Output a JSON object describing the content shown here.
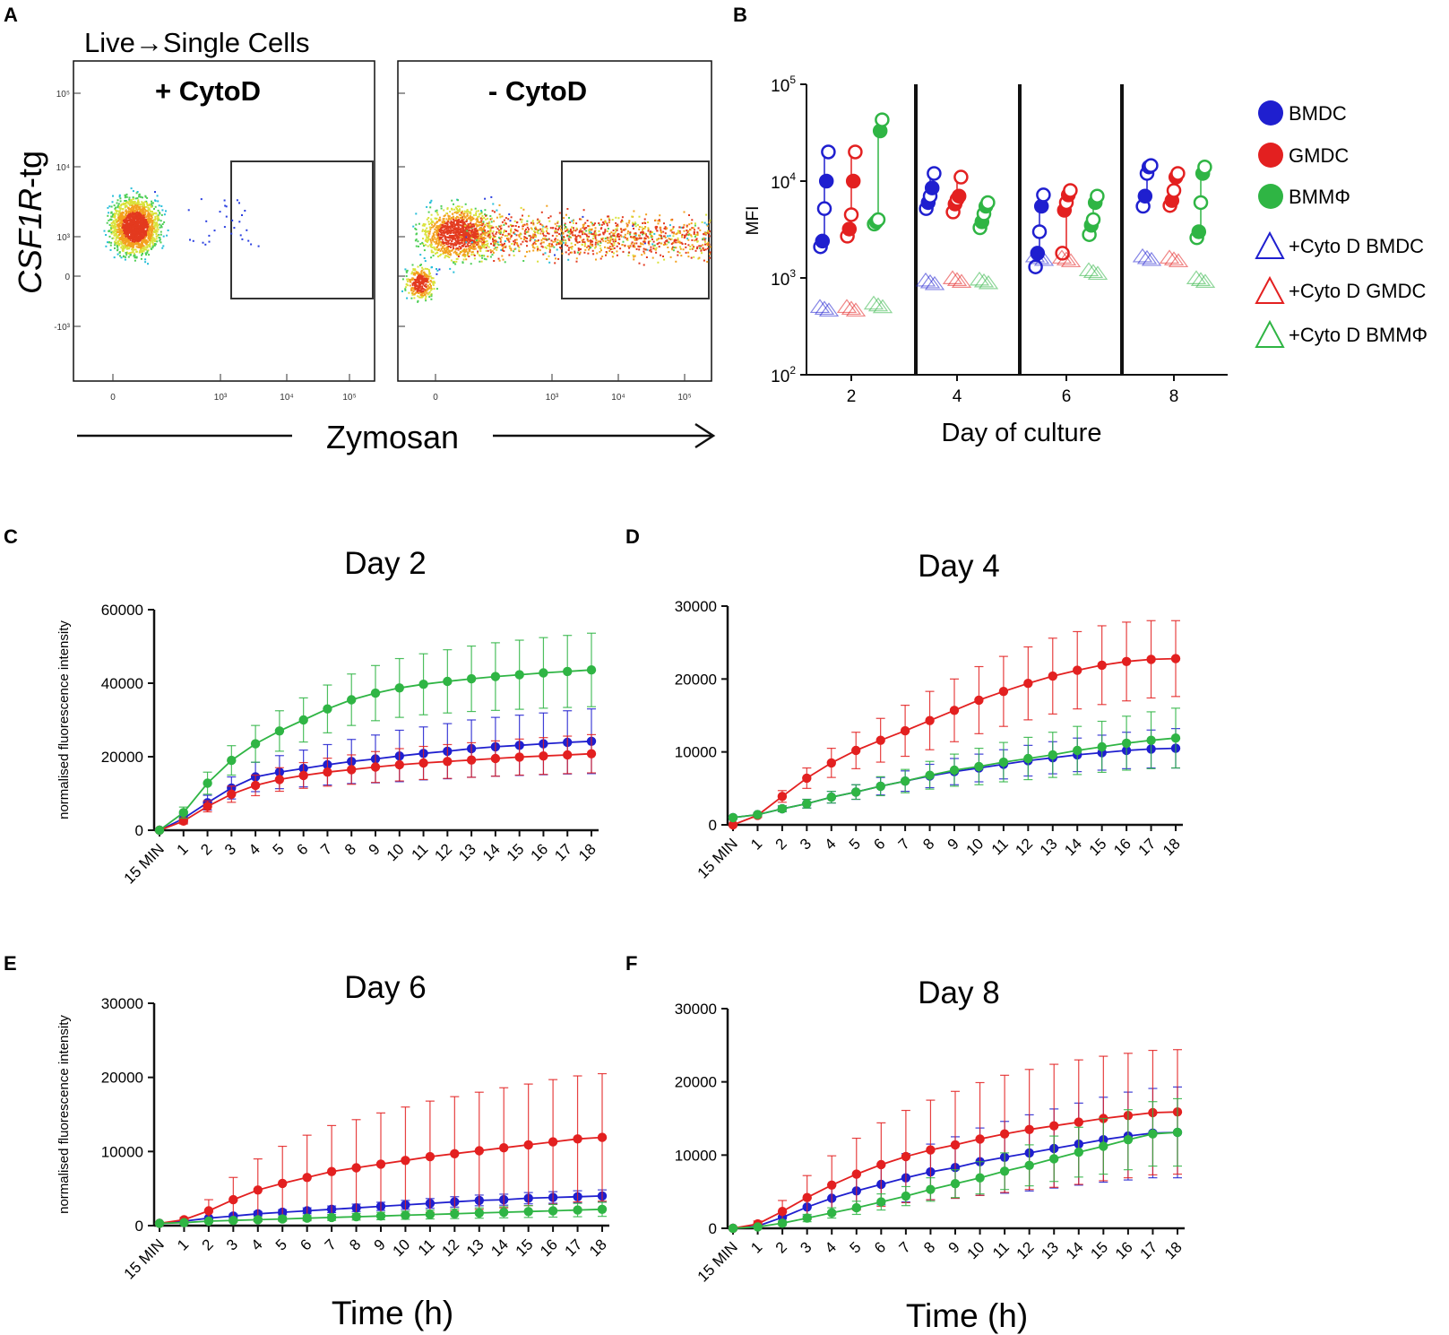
{
  "panel_letters": {
    "a": "A",
    "b": "B",
    "c": "C",
    "d": "D",
    "e": "E",
    "f": "F"
  },
  "colors": {
    "BMDC": "#1f1fcf",
    "GMDC": "#e32020",
    "BMMPhi": "#2fb544",
    "axis": "#111111",
    "gate": "#333333"
  },
  "chart_data": [
    {
      "id": "A",
      "type": "scatter",
      "title": "Live→Single Cells",
      "subplots": [
        {
          "label": "+ CytoD",
          "gated_population": "none"
        },
        {
          "label": "- CytoD",
          "gated_population": "large"
        }
      ],
      "xlabel": "Zymosan",
      "ylabel_italic": "CSF1R",
      "ylabel_suffix": "-tg",
      "xticks": [
        "0",
        "10³",
        "10⁴",
        "10⁵"
      ],
      "yticks": [
        "10⁵",
        "10⁴",
        "10³",
        "0",
        "-10³"
      ],
      "axis_scale": "biexponential"
    },
    {
      "id": "B",
      "type": "scatter",
      "xlabel": "Day of culture",
      "ylabel": "MFI",
      "yscale": "log",
      "ylim": [
        100,
        100000
      ],
      "ytick_labels": [
        {
          "base": "10",
          "exp": "5"
        },
        {
          "base": "10",
          "exp": "4"
        },
        {
          "base": "10",
          "exp": "3"
        },
        {
          "base": "10",
          "exp": "2"
        }
      ],
      "categories": [
        "2",
        "4",
        "6",
        "8"
      ],
      "series": [
        {
          "name": "BMDC",
          "values": [
            [
              2100,
              2400,
              5200,
              10000,
              20000
            ],
            [
              5200,
              6000,
              7000,
              8500,
              12000
            ],
            [
              1300,
              1800,
              3000,
              5500,
              7200
            ],
            [
              5500,
              7000,
              12000,
              14000,
              14500
            ]
          ]
        },
        {
          "name": "GMDC",
          "values": [
            [
              2700,
              3200,
              4500,
              10000,
              20000
            ],
            [
              4800,
              5800,
              6500,
              7000,
              11000
            ],
            [
              1800,
              5000,
              6000,
              7200,
              8000
            ],
            [
              5600,
              6300,
              8000,
              11000,
              12000
            ]
          ]
        },
        {
          "name": "BMMΦ",
          "values": [
            [
              3600,
              3800,
              4000,
              33000,
              43000
            ],
            [
              3300,
              3800,
              4600,
              5500,
              6000
            ],
            [
              2800,
              3500,
              4000,
              6000,
              7000
            ],
            [
              2600,
              3000,
              6000,
              12000,
              14000
            ]
          ]
        },
        {
          "name": "+Cyto D BMDC",
          "values": [
            480,
            900,
            1600,
            1600
          ]
        },
        {
          "name": "+Cyto D GMDC",
          "values": [
            480,
            950,
            1550,
            1550
          ]
        },
        {
          "name": "+Cyto D BMMΦ",
          "values": [
            520,
            920,
            1150,
            950
          ]
        }
      ]
    },
    {
      "id": "C",
      "type": "line",
      "title": "Day 2",
      "ylabel": "normalised fluorescence intensity",
      "xlabel": "",
      "ylim": [
        0,
        60000
      ],
      "yticks": [
        "0",
        "20000",
        "40000",
        "60000"
      ],
      "categories": [
        "15 MIN",
        "1",
        "2",
        "3",
        "4",
        "5",
        "6",
        "7",
        "8",
        "9",
        "10",
        "11",
        "12",
        "13",
        "14",
        "15",
        "16",
        "17",
        "18"
      ],
      "series": [
        {
          "name": "BMDC",
          "values": [
            0,
            3200,
            7500,
            11500,
            14500,
            15800,
            16800,
            17800,
            18700,
            19400,
            20200,
            20900,
            21500,
            22200,
            22700,
            23100,
            23500,
            23900,
            24200
          ],
          "errors": [
            0,
            1200,
            2000,
            3000,
            4000,
            4500,
            5000,
            5500,
            6000,
            6500,
            7000,
            7200,
            7500,
            7800,
            8000,
            8200,
            8400,
            8600,
            8800
          ]
        },
        {
          "name": "GMDC",
          "values": [
            0,
            2500,
            6500,
            9800,
            12200,
            13800,
            14900,
            15800,
            16500,
            17200,
            17800,
            18300,
            18700,
            19100,
            19500,
            19900,
            20200,
            20500,
            20800
          ],
          "errors": [
            0,
            800,
            1500,
            2200,
            2800,
            3200,
            3500,
            3800,
            4000,
            4200,
            4400,
            4500,
            4600,
            4700,
            4800,
            4900,
            5000,
            5100,
            5200
          ]
        },
        {
          "name": "BMMΦ",
          "values": [
            0,
            4800,
            12800,
            19000,
            23500,
            27000,
            30000,
            33000,
            35500,
            37300,
            38700,
            39700,
            40500,
            41200,
            41800,
            42300,
            42800,
            43200,
            43600
          ],
          "errors": [
            0,
            1500,
            3000,
            4000,
            5000,
            5500,
            6000,
            6500,
            7000,
            7500,
            8000,
            8300,
            8600,
            8900,
            9200,
            9400,
            9600,
            9800,
            10000
          ]
        }
      ]
    },
    {
      "id": "D",
      "type": "line",
      "title": "Day 4",
      "ylabel": "",
      "xlabel": "",
      "ylim": [
        0,
        30000
      ],
      "yticks": [
        "0",
        "10000",
        "20000",
        "30000"
      ],
      "categories": [
        "15 MIN",
        "1",
        "2",
        "3",
        "4",
        "5",
        "6",
        "7",
        "8",
        "9",
        "10",
        "11",
        "12",
        "13",
        "14",
        "15",
        "16",
        "17",
        "18"
      ],
      "series": [
        {
          "name": "BMDC",
          "values": [
            1000,
            1400,
            2200,
            2900,
            3800,
            4500,
            5300,
            6000,
            6700,
            7300,
            7800,
            8300,
            8800,
            9200,
            9600,
            9900,
            10200,
            10400,
            10500
          ],
          "errors": [
            0,
            200,
            400,
            600,
            800,
            1000,
            1200,
            1400,
            1600,
            1800,
            1900,
            2000,
            2100,
            2200,
            2300,
            2400,
            2500,
            2600,
            2700
          ]
        },
        {
          "name": "GMDC",
          "values": [
            0,
            1300,
            3900,
            6400,
            8500,
            10200,
            11600,
            12900,
            14300,
            15700,
            17100,
            18300,
            19400,
            20400,
            21200,
            21900,
            22400,
            22700,
            22800
          ],
          "errors": [
            0,
            300,
            800,
            1400,
            2000,
            2500,
            3000,
            3500,
            4000,
            4300,
            4600,
            4800,
            5000,
            5200,
            5300,
            5400,
            5400,
            5300,
            5200
          ]
        },
        {
          "name": "BMMΦ",
          "values": [
            1000,
            1400,
            2200,
            2900,
            3800,
            4500,
            5300,
            6000,
            6800,
            7500,
            8000,
            8600,
            9100,
            9600,
            10200,
            10700,
            11200,
            11600,
            11900
          ],
          "errors": [
            0,
            200,
            400,
            600,
            800,
            1000,
            1300,
            1600,
            1900,
            2200,
            2500,
            2700,
            2900,
            3100,
            3300,
            3500,
            3700,
            3900,
            4100
          ]
        }
      ]
    },
    {
      "id": "E",
      "type": "line",
      "title": "Day 6",
      "ylabel": "normalised fluorescence intensity",
      "xlabel": "Time (h)",
      "ylim": [
        0,
        30000
      ],
      "yticks": [
        "0",
        "10000",
        "20000",
        "30000"
      ],
      "categories": [
        "15 MIN",
        "1",
        "2",
        "3",
        "4",
        "5",
        "6",
        "7",
        "8",
        "9",
        "10",
        "11",
        "12",
        "13",
        "14",
        "15",
        "16",
        "17",
        "18"
      ],
      "series": [
        {
          "name": "BMDC",
          "values": [
            300,
            600,
            1000,
            1300,
            1600,
            1800,
            2000,
            2200,
            2400,
            2600,
            2800,
            3000,
            3200,
            3400,
            3500,
            3700,
            3800,
            3900,
            4000
          ],
          "errors": [
            0,
            100,
            200,
            250,
            300,
            350,
            400,
            450,
            500,
            550,
            600,
            650,
            700,
            720,
            740,
            760,
            780,
            800,
            820
          ]
        },
        {
          "name": "GMDC",
          "values": [
            300,
            800,
            2000,
            3500,
            4800,
            5700,
            6500,
            7300,
            7800,
            8300,
            8800,
            9300,
            9700,
            10100,
            10500,
            10900,
            11300,
            11700,
            11900
          ],
          "errors": [
            0,
            300,
            1500,
            3000,
            4200,
            5000,
            5700,
            6200,
            6500,
            6900,
            7200,
            7500,
            7700,
            7900,
            8100,
            8200,
            8400,
            8500,
            8600
          ]
        },
        {
          "name": "BMMΦ",
          "values": [
            300,
            400,
            600,
            700,
            800,
            900,
            1000,
            1100,
            1200,
            1300,
            1400,
            1500,
            1600,
            1700,
            1800,
            1900,
            2000,
            2100,
            2200
          ],
          "errors": [
            0,
            100,
            150,
            200,
            250,
            300,
            350,
            400,
            450,
            500,
            550,
            600,
            650,
            700,
            750,
            800,
            850,
            900,
            950
          ]
        }
      ]
    },
    {
      "id": "F",
      "type": "line",
      "title": "Day 8",
      "ylabel": "",
      "xlabel": "Time (h)",
      "ylim": [
        0,
        30000
      ],
      "yticks": [
        "0",
        "10000",
        "20000",
        "30000"
      ],
      "categories": [
        "15 MIN",
        "1",
        "2",
        "3",
        "4",
        "5",
        "6",
        "7",
        "8",
        "9",
        "10",
        "11",
        "12",
        "13",
        "14",
        "15",
        "16",
        "17",
        "18"
      ],
      "series": [
        {
          "name": "BMDC",
          "values": [
            0,
            300,
            1500,
            2900,
            4100,
            5100,
            6000,
            6900,
            7700,
            8300,
            9100,
            9700,
            10300,
            10900,
            11500,
            12100,
            12600,
            13000,
            13100
          ],
          "errors": [
            0,
            200,
            700,
            1200,
            1800,
            2300,
            2800,
            3300,
            3800,
            4200,
            4600,
            4900,
            5200,
            5400,
            5600,
            5800,
            6000,
            6100,
            6200
          ]
        },
        {
          "name": "GMDC",
          "values": [
            0,
            600,
            2300,
            4200,
            5900,
            7400,
            8700,
            9800,
            10700,
            11400,
            12200,
            12900,
            13500,
            14000,
            14500,
            15000,
            15400,
            15800,
            15900
          ],
          "errors": [
            0,
            400,
            1500,
            3000,
            4000,
            4900,
            5700,
            6300,
            6800,
            7300,
            7700,
            8000,
            8200,
            8400,
            8500,
            8500,
            8500,
            8500,
            8500
          ]
        },
        {
          "name": "BMMΦ",
          "values": [
            0,
            200,
            700,
            1400,
            2100,
            2800,
            3600,
            4400,
            5300,
            6100,
            6900,
            7800,
            8600,
            9500,
            10400,
            11200,
            12100,
            12900,
            13100
          ],
          "errors": [
            0,
            100,
            300,
            500,
            700,
            900,
            1100,
            1300,
            1600,
            1900,
            2200,
            2500,
            2800,
            3100,
            3400,
            3800,
            4100,
            4400,
            4600
          ]
        }
      ]
    }
  ]
}
